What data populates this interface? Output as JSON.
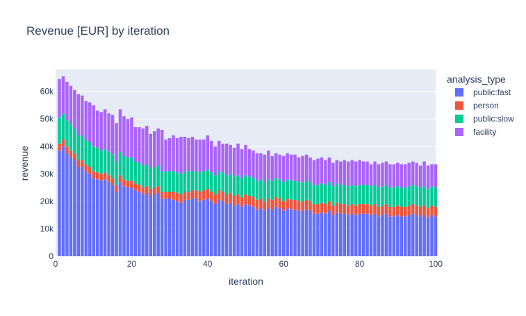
{
  "chart_data": {
    "type": "bar",
    "barmode": "stack",
    "title": "Revenue [EUR] by iteration",
    "xlabel": "iteration",
    "ylabel": "revenue",
    "xlim": [
      0,
      100
    ],
    "ylim": [
      0,
      68000
    ],
    "xticks": [
      0,
      20,
      40,
      60,
      80,
      100
    ],
    "xtick_labels": [
      "0",
      "20",
      "40",
      "60",
      "80",
      "100"
    ],
    "yticks": [
      0,
      10000,
      20000,
      30000,
      40000,
      50000,
      60000
    ],
    "ytick_labels": [
      "0",
      "10k",
      "20k",
      "30k",
      "40k",
      "50k",
      "60k"
    ],
    "grid": true,
    "plot_bgcolor": "#e5ecf6",
    "legend_title": "analysis_type",
    "legend_position": "top-right",
    "x": [
      1,
      2,
      3,
      4,
      5,
      6,
      7,
      8,
      9,
      10,
      11,
      12,
      13,
      14,
      15,
      16,
      17,
      18,
      19,
      20,
      21,
      22,
      23,
      24,
      25,
      26,
      27,
      28,
      29,
      30,
      31,
      32,
      33,
      34,
      35,
      36,
      37,
      38,
      39,
      40,
      41,
      42,
      43,
      44,
      45,
      46,
      47,
      48,
      49,
      50,
      51,
      52,
      53,
      54,
      55,
      56,
      57,
      58,
      59,
      60,
      61,
      62,
      63,
      64,
      65,
      66,
      67,
      68,
      69,
      70,
      71,
      72,
      73,
      74,
      75,
      76,
      77,
      78,
      79,
      80,
      81,
      82,
      83,
      84,
      85,
      86,
      87,
      88,
      89,
      90,
      91,
      92,
      93,
      94,
      95,
      96,
      97,
      98,
      99,
      100
    ],
    "series": [
      {
        "name": "public:fast",
        "color": "#636efa",
        "values": [
          38500,
          40000,
          37500,
          36000,
          35000,
          32500,
          32500,
          31000,
          30000,
          28500,
          28000,
          27500,
          28000,
          27000,
          26000,
          23500,
          27000,
          25500,
          25000,
          25000,
          24000,
          23500,
          22500,
          23000,
          22000,
          22500,
          23000,
          21000,
          21000,
          21000,
          20500,
          20000,
          19500,
          20500,
          20500,
          21000,
          21000,
          20000,
          20500,
          21000,
          20000,
          19000,
          20500,
          20000,
          19000,
          19500,
          18500,
          19000,
          18000,
          19000,
          18500,
          18000,
          17000,
          17500,
          16500,
          17500,
          17000,
          18000,
          17500,
          16500,
          17500,
          17000,
          17000,
          16500,
          16500,
          17000,
          16500,
          15500,
          15500,
          16000,
          15500,
          16500,
          15000,
          16000,
          15500,
          15500,
          15000,
          15500,
          15000,
          15500,
          15500,
          15500,
          15000,
          15500,
          14500,
          15000,
          15500,
          14500,
          14500,
          15000,
          14500,
          14500,
          15000,
          15500,
          15000,
          14500,
          15000,
          14000,
          15000,
          14500
        ]
      },
      {
        "name": "person",
        "color": "#ef553b",
        "values": [
          2500,
          2500,
          2500,
          2500,
          2500,
          2500,
          2500,
          2500,
          2500,
          2500,
          2500,
          2500,
          2500,
          2500,
          2500,
          2500,
          2500,
          2500,
          2500,
          2500,
          2500,
          2500,
          2500,
          2500,
          2500,
          2500,
          2500,
          2500,
          2500,
          2500,
          3000,
          3000,
          3000,
          3000,
          3000,
          3000,
          3000,
          3500,
          3500,
          3500,
          3500,
          3500,
          3500,
          3500,
          3500,
          3500,
          3500,
          3500,
          3500,
          3500,
          3500,
          3500,
          3500,
          3500,
          3500,
          3500,
          3500,
          3500,
          3500,
          3500,
          3500,
          3500,
          3500,
          3500,
          3500,
          3500,
          3500,
          3500,
          3500,
          3500,
          3500,
          3500,
          3500,
          3500,
          3500,
          3500,
          3500,
          3500,
          3500,
          3500,
          3500,
          3500,
          3500,
          3500,
          3500,
          3500,
          3500,
          3500,
          3500,
          3500,
          3500,
          3500,
          3500,
          3500,
          3500,
          3500,
          3500,
          3500,
          3500,
          3500
        ]
      },
      {
        "name": "public:slow",
        "color": "#00cc96",
        "values": [
          9500,
          9500,
          9500,
          9500,
          9000,
          9000,
          9000,
          9000,
          9000,
          9000,
          9000,
          8500,
          8500,
          8500,
          8500,
          8500,
          8500,
          8500,
          8500,
          8500,
          8000,
          8000,
          8000,
          8000,
          7500,
          7500,
          7500,
          7500,
          7500,
          7500,
          7500,
          7500,
          7500,
          7500,
          7500,
          7000,
          7000,
          7000,
          7000,
          7000,
          7000,
          7000,
          7000,
          7000,
          7000,
          7000,
          7000,
          7000,
          7000,
          7000,
          7000,
          7000,
          7000,
          7000,
          7000,
          7000,
          7000,
          7000,
          7000,
          7000,
          7000,
          7000,
          7000,
          7000,
          7000,
          7000,
          7000,
          7000,
          7000,
          7000,
          7000,
          7000,
          7000,
          7000,
          7000,
          7000,
          7000,
          7000,
          7000,
          7000,
          7000,
          7000,
          7000,
          7000,
          7000,
          7000,
          7000,
          7000,
          7000,
          7000,
          7000,
          7000,
          7000,
          7000,
          7000,
          7000,
          7000,
          7000,
          7000,
          7000
        ]
      },
      {
        "name": "facility",
        "color": "#ab63fa",
        "values": [
          14000,
          13500,
          14000,
          14000,
          14000,
          15000,
          14500,
          14000,
          14500,
          15000,
          13500,
          14000,
          14500,
          14000,
          14500,
          14000,
          15500,
          14500,
          14000,
          14500,
          12500,
          13000,
          13500,
          14000,
          12500,
          13000,
          13500,
          15000,
          11500,
          12000,
          13000,
          12500,
          13500,
          12500,
          12000,
          12500,
          11500,
          12000,
          11500,
          12500,
          11500,
          10500,
          11000,
          10500,
          11500,
          10500,
          10500,
          11500,
          10500,
          11000,
          10000,
          10000,
          10000,
          9500,
          10000,
          10500,
          9000,
          9000,
          9000,
          9500,
          9500,
          9500,
          9500,
          9000,
          9500,
          9500,
          9000,
          9000,
          9500,
          9500,
          9000,
          9000,
          8500,
          8500,
          8500,
          9000,
          9000,
          9000,
          9000,
          9000,
          8500,
          8500,
          8000,
          8500,
          8500,
          8500,
          8500,
          8500,
          8500,
          8500,
          8500,
          8500,
          8500,
          8500,
          8500,
          8000,
          9000,
          8500,
          8000,
          8500
        ]
      }
    ]
  }
}
